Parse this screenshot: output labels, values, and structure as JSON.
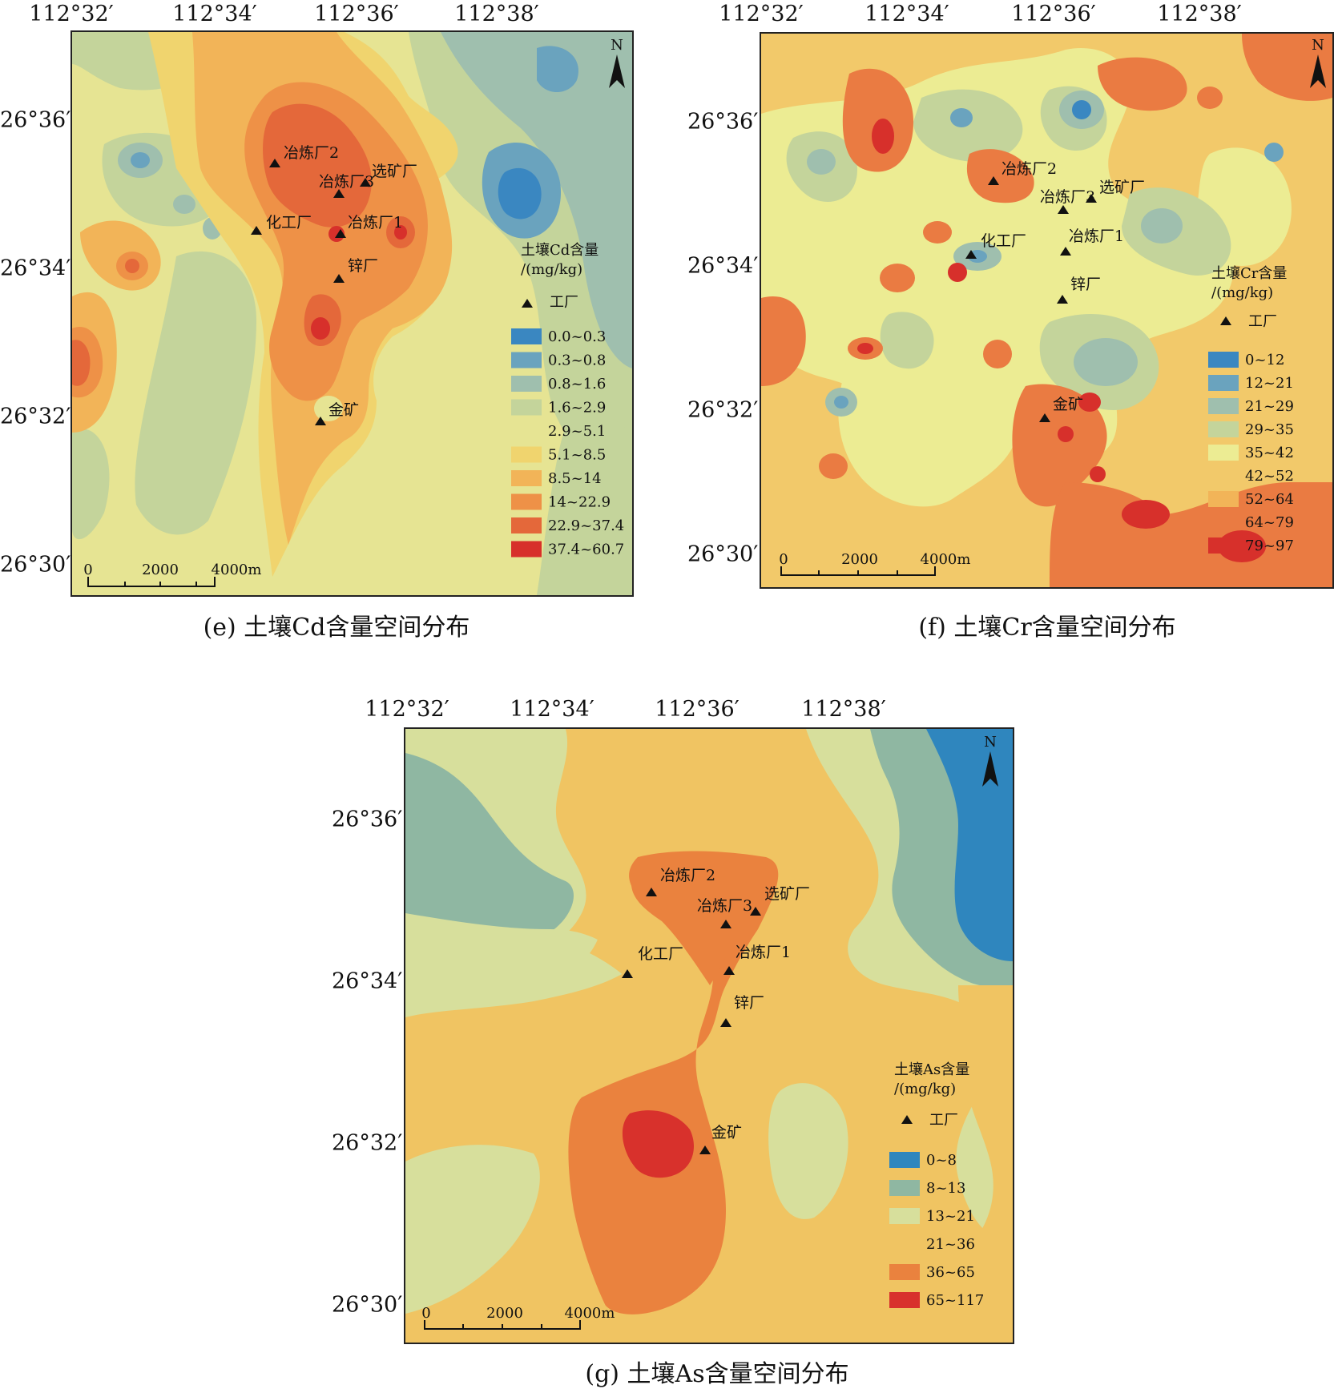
{
  "panels": [
    {
      "id": "e",
      "caption": "(e) 土壤Cd含量空间分布",
      "lon_labels": [
        "112°32′",
        "112°34′",
        "112°36′",
        "112°38′"
      ],
      "lat_labels": [
        "26°36′",
        "26°34′",
        "26°32′",
        "26°30′"
      ],
      "north": "N",
      "legend_title_1": "土壤Cd含量",
      "legend_title_2": "/(mg/kg)",
      "factory_legend": "工厂",
      "classes": [
        {
          "label": "0.0~0.3",
          "color": "#3a87c1"
        },
        {
          "label": "0.3~0.8",
          "color": "#6aa3be"
        },
        {
          "label": "0.8~1.6",
          "color": "#9fbfae"
        },
        {
          "label": "1.6~2.9",
          "color": "#c4d49b"
        },
        {
          "label": "2.9~5.1",
          "color": "#e6e493"
        },
        {
          "label": "5.1~8.5",
          "color": "#f0d46e"
        },
        {
          "label": "8.5~14",
          "color": "#f2b458"
        },
        {
          "label": "14~22.9",
          "color": "#ee9147"
        },
        {
          "label": "22.9~37.4",
          "color": "#e4683a"
        },
        {
          "label": "37.4~60.7",
          "color": "#d7302b"
        }
      ],
      "scale": [
        "0",
        "2000",
        "4000m"
      ],
      "sites": [
        "冶炼厂2",
        "冶炼厂3",
        "选矿厂",
        "化工厂",
        "冶炼厂1",
        "锌厂",
        "金矿"
      ]
    },
    {
      "id": "f",
      "caption": "(f) 土壤Cr含量空间分布",
      "lon_labels": [
        "112°32′",
        "112°34′",
        "112°36′",
        "112°38′"
      ],
      "lat_labels": [
        "26°36′",
        "26°34′",
        "26°32′",
        "26°30′"
      ],
      "north": "N",
      "legend_title_1": "土壤Cr含量",
      "legend_title_2": "/(mg/kg)",
      "factory_legend": "工厂",
      "classes": [
        {
          "label": "0~12",
          "color": "#3a87c1"
        },
        {
          "label": "12~21",
          "color": "#6aa3be"
        },
        {
          "label": "21~29",
          "color": "#9fbfae"
        },
        {
          "label": "29~35",
          "color": "#c4d49b"
        },
        {
          "label": "35~42",
          "color": "#ecec93"
        },
        {
          "label": "42~52",
          "color": "#f2c96a"
        },
        {
          "label": "52~64",
          "color": "#f2b458"
        },
        {
          "label": "64~79",
          "color": "#ea7b42"
        },
        {
          "label": "79~97",
          "color": "#d7302b"
        }
      ],
      "scale": [
        "0",
        "2000",
        "4000m"
      ],
      "sites": [
        "冶炼厂2",
        "冶炼厂3",
        "选矿厂",
        "化工厂",
        "冶炼厂1",
        "锌厂",
        "金矿"
      ]
    },
    {
      "id": "g",
      "caption": "(g) 土壤As含量空间分布",
      "lon_labels": [
        "112°32′",
        "112°34′",
        "112°36′",
        "112°38′"
      ],
      "lat_labels": [
        "26°36′",
        "26°34′",
        "26°32′",
        "26°30′"
      ],
      "north": "N",
      "legend_title_1": "土壤As含量",
      "legend_title_2": "/(mg/kg)",
      "factory_legend": "工厂",
      "classes": [
        {
          "label": "0~8",
          "color": "#2f86be"
        },
        {
          "label": "8~13",
          "color": "#8fb7a2"
        },
        {
          "label": "13~21",
          "color": "#d7df9c"
        },
        {
          "label": "21~36",
          "color": "#f0c462"
        },
        {
          "label": "36~65",
          "color": "#ea823e"
        },
        {
          "label": "65~117",
          "color": "#d8312c"
        }
      ],
      "scale": [
        "0",
        "2000",
        "4000m"
      ],
      "sites": [
        "冶炼厂2",
        "冶炼厂3",
        "选矿厂",
        "化工厂",
        "冶炼厂1",
        "锌厂",
        "金矿"
      ]
    }
  ]
}
